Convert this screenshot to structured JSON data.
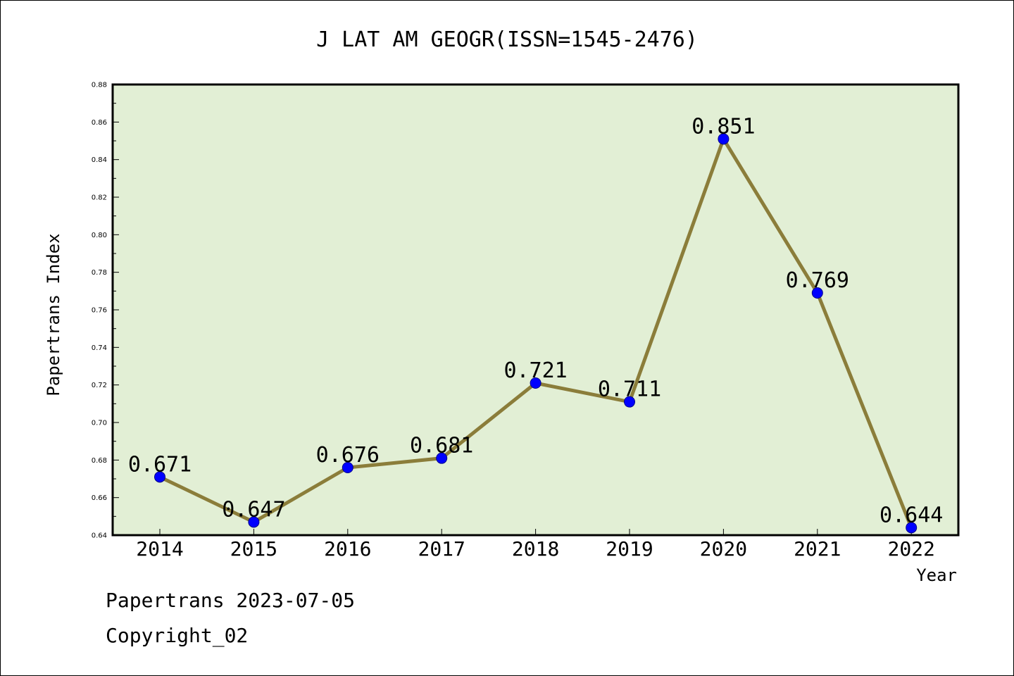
{
  "chart_data": {
    "type": "line",
    "title": "J LAT AM GEOGR(ISSN=1545-2476)",
    "xlabel": "Year",
    "ylabel": "Papertrans Index",
    "categories": [
      "2014",
      "2015",
      "2016",
      "2017",
      "2018",
      "2019",
      "2020",
      "2021",
      "2022"
    ],
    "series": [
      {
        "values": [
          0.671,
          0.647,
          0.676,
          0.681,
          0.721,
          0.711,
          0.851,
          0.769,
          0.644
        ],
        "labels": [
          "0.671",
          "0.647",
          "0.676",
          "0.681",
          "0.721",
          "0.711",
          "0.851",
          "0.769",
          "0.644"
        ]
      }
    ],
    "ylim": [
      0.64,
      0.88
    ],
    "yticks": [
      "0.64",
      "0.66",
      "0.68",
      "0.70",
      "0.72",
      "0.74",
      "0.76",
      "0.78",
      "0.80",
      "0.82",
      "0.84",
      "0.86",
      "0.88"
    ],
    "grid": false,
    "colors": {
      "plot_background": "#e2efd5",
      "line": "#8b7d3a",
      "marker": "#0000ff"
    }
  },
  "footer": {
    "line1": "Papertrans 2023-07-05",
    "line2": "Copyright_02"
  }
}
